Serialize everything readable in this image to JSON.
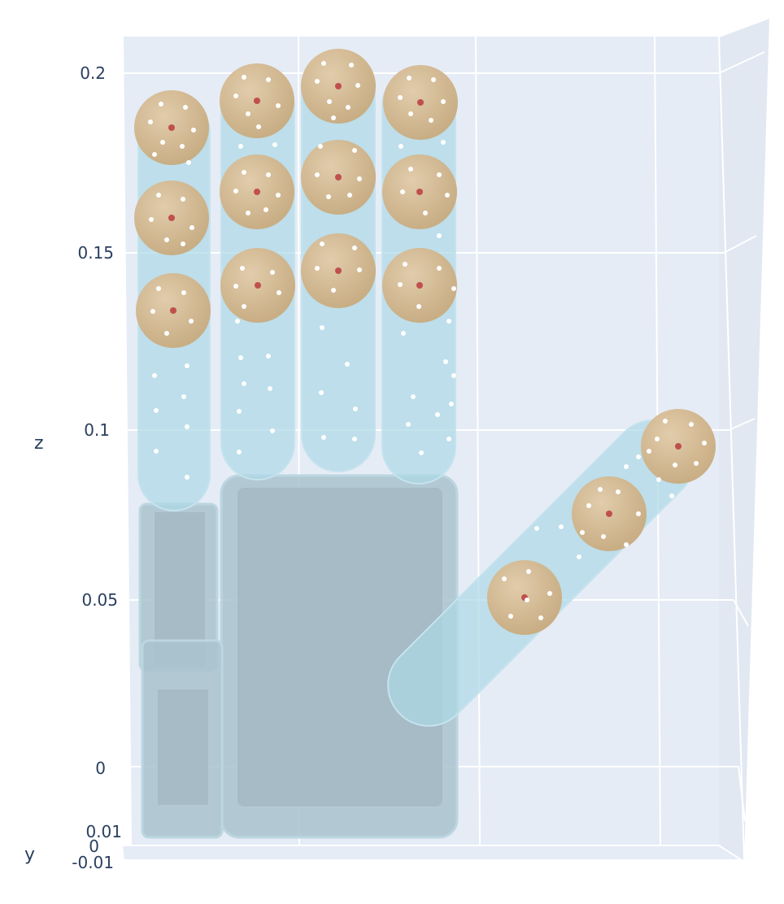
{
  "scene": {
    "axes": {
      "z": {
        "title": "z",
        "ticks": [
          "0.2",
          "0.15",
          "0.1",
          "0.05",
          "0"
        ]
      },
      "y": {
        "title": "y",
        "ticks": [
          "0.01",
          "0",
          "-0.01"
        ]
      }
    },
    "colors": {
      "background": "#e5ecf6",
      "grid": "#ffffff",
      "hand_link": "#add8e6",
      "palm_box": "#a9bfc9",
      "sphere": "#d2b48c",
      "sphere_center": "#c0504d",
      "points": "#ffffff"
    },
    "objects": {
      "collision_spheres": 15,
      "finger_links": 5
    }
  }
}
